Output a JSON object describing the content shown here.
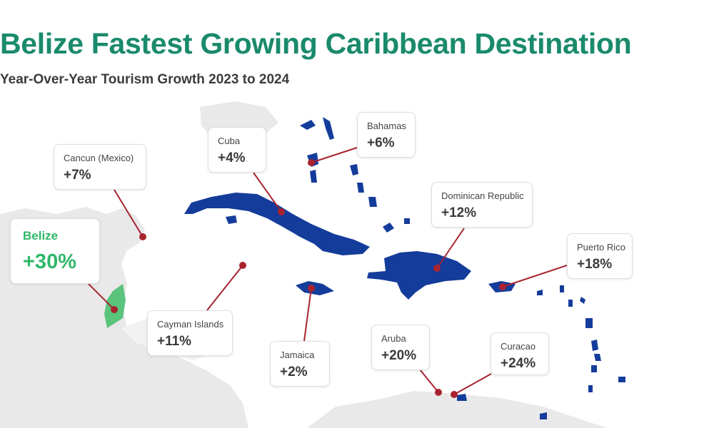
{
  "header": {
    "title": "Belize Fastest Growing Caribbean Destination",
    "subtitle": "Year-Over-Year Tourism Growth 2023 to 2024"
  },
  "colors": {
    "title": "#1a8a6c",
    "highlight": "#2fb86a",
    "islands": "#143c9b",
    "mainland": "#e7e7e7",
    "connector": "#a8232f"
  },
  "destinations": [
    {
      "name": "Belize",
      "growth": "+30%",
      "highlight": true
    },
    {
      "name": "Cancun (Mexico)",
      "growth": "+7%"
    },
    {
      "name": "Cuba",
      "growth": "+4%"
    },
    {
      "name": "Bahamas",
      "growth": "+6%"
    },
    {
      "name": "Dominican Republic",
      "growth": "+12%"
    },
    {
      "name": "Puerto Rico",
      "growth": "+18%"
    },
    {
      "name": "Cayman Islands",
      "growth": "+11%"
    },
    {
      "name": "Jamaica",
      "growth": "+2%"
    },
    {
      "name": "Aruba",
      "growth": "+20%"
    },
    {
      "name": "Curacao",
      "growth": "+24%"
    }
  ]
}
